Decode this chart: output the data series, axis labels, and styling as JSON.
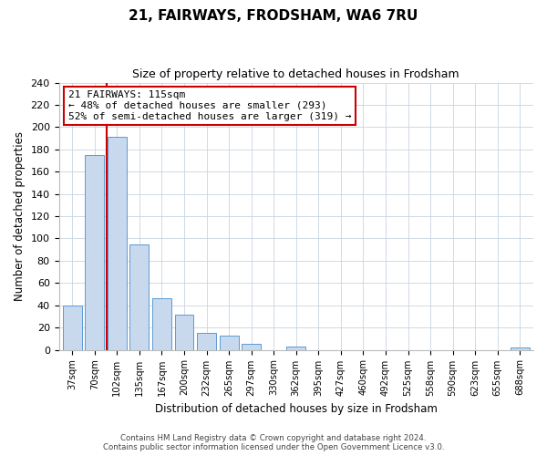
{
  "title": "21, FAIRWAYS, FRODSHAM, WA6 7RU",
  "subtitle": "Size of property relative to detached houses in Frodsham",
  "xlabel": "Distribution of detached houses by size in Frodsham",
  "ylabel": "Number of detached properties",
  "bar_labels": [
    "37sqm",
    "70sqm",
    "102sqm",
    "135sqm",
    "167sqm",
    "200sqm",
    "232sqm",
    "265sqm",
    "297sqm",
    "330sqm",
    "362sqm",
    "395sqm",
    "427sqm",
    "460sqm",
    "492sqm",
    "525sqm",
    "558sqm",
    "590sqm",
    "623sqm",
    "655sqm",
    "688sqm"
  ],
  "bar_values": [
    40,
    175,
    191,
    95,
    46,
    32,
    15,
    13,
    5,
    0,
    3,
    0,
    0,
    0,
    0,
    0,
    0,
    0,
    0,
    0,
    2
  ],
  "bar_color": "#c8d9ed",
  "bar_edge_color": "#5b9bd5",
  "vline_x_index": 2,
  "vline_color": "#cc0000",
  "annotation_line1": "21 FAIRWAYS: 115sqm",
  "annotation_line2": "← 48% of detached houses are smaller (293)",
  "annotation_line3": "52% of semi-detached houses are larger (319) →",
  "ylim": [
    0,
    240
  ],
  "yticks": [
    0,
    20,
    40,
    60,
    80,
    100,
    120,
    140,
    160,
    180,
    200,
    220,
    240
  ],
  "footer_line1": "Contains HM Land Registry data © Crown copyright and database right 2024.",
  "footer_line2": "Contains public sector information licensed under the Open Government Licence v3.0.",
  "background_color": "#ffffff",
  "grid_color": "#c8d4e0",
  "ann_box_edge_color": "#cc0000",
  "ann_box_face_color": "#ffffff"
}
